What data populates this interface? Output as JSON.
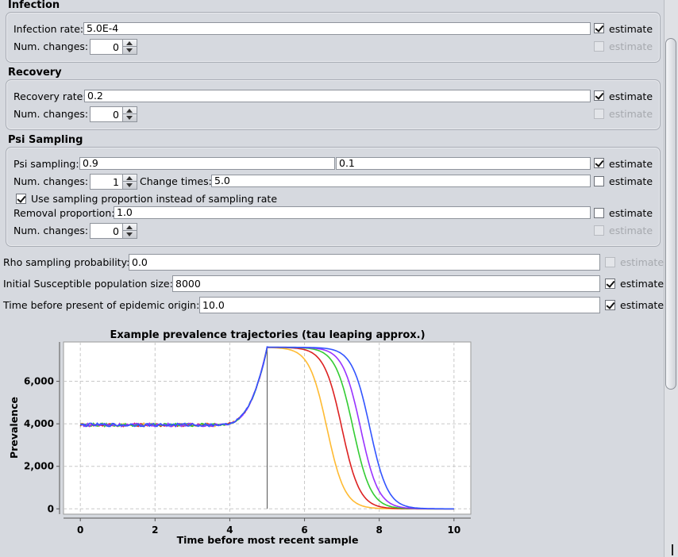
{
  "infection": {
    "title": "Infection",
    "rate_label": "Infection rate:",
    "rate_value": "5.0E-4",
    "estimate_label": "estimate",
    "changes_label": "Num. changes:",
    "changes_value": "0",
    "changes_estimate_label": "estimate"
  },
  "recovery": {
    "title": "Recovery",
    "rate_label": "Recovery rate:",
    "rate_value": "0.2",
    "estimate_label": "estimate",
    "changes_label": "Num. changes:",
    "changes_value": "0",
    "changes_estimate_label": "estimate"
  },
  "psi": {
    "title": "Psi Sampling",
    "sampling_label": "Psi sampling:",
    "sampling_value_1": "0.9",
    "sampling_value_2": "0.1",
    "estimate_label": "estimate",
    "changes_label": "Num. changes:",
    "changes_value": "1",
    "change_times_label": "Change times:",
    "change_times_value": "5.0",
    "change_times_estimate_label": "estimate",
    "use_proportion_label": "Use sampling proportion instead of sampling rate",
    "removal_label": "Removal proportion:",
    "removal_value": "1.0",
    "removal_estimate_label": "estimate",
    "removal_changes_label": "Num. changes:",
    "removal_changes_value": "0",
    "removal_changes_estimate_label": "estimate"
  },
  "rho": {
    "label": "Rho sampling probability:",
    "value": "0.0",
    "estimate_label": "estimate"
  },
  "susceptible": {
    "label": "Initial Susceptible population size:",
    "value": "8000",
    "estimate_label": "estimate"
  },
  "origin": {
    "label": "Time before present of epidemic origin:",
    "value": "10.0",
    "estimate_label": "estimate"
  },
  "chart_data": {
    "type": "line",
    "title": "Example prevalence trajectories (tau leaping approx.)",
    "xlabel": "Time before most recent sample",
    "ylabel": "Prevalence",
    "xlim": [
      -0.45,
      10.45
    ],
    "ylim": [
      -250,
      7850
    ],
    "x_ticks": [
      "0",
      "2",
      "4",
      "6",
      "8",
      "10"
    ],
    "y_ticks": [
      "0",
      "2,000",
      "4,000",
      "6,000"
    ],
    "grid": true,
    "vertical_marker_x": 5.0,
    "series": [
      {
        "color": "#ffbb33",
        "midpoint": 6.6
      },
      {
        "color": "#dd2222",
        "midpoint": 7.0
      },
      {
        "color": "#33cc33",
        "midpoint": 7.3
      },
      {
        "color": "#9933ff",
        "midpoint": 7.5
      },
      {
        "color": "#3355ff",
        "midpoint": 7.75
      }
    ]
  }
}
